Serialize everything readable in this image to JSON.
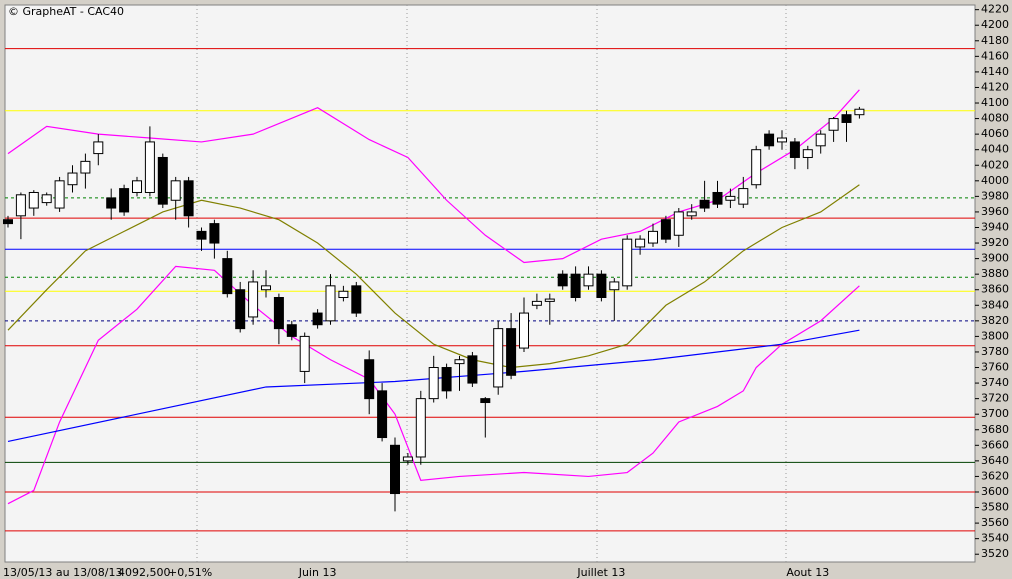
{
  "chart_data": {
    "type": "candlestick",
    "title": "© GrapheAT - CAC40",
    "footer": {
      "period": "13/05/13 au 13/08/13",
      "last": "4092,500",
      "change": "+0,51%"
    },
    "categories": [
      null,
      null,
      null,
      null,
      null,
      null,
      null,
      null,
      null,
      null,
      null,
      null,
      null,
      null,
      null,
      null,
      null,
      null,
      null,
      null,
      null,
      null,
      null,
      null,
      "Juin 13",
      null,
      null,
      null,
      null,
      null,
      null,
      null,
      null,
      null,
      null,
      null,
      null,
      null,
      null,
      null,
      null,
      null,
      null,
      null,
      null,
      null,
      "Juillet 13",
      null,
      null,
      null,
      null,
      null,
      null,
      null,
      null,
      null,
      null,
      null,
      null,
      null,
      null,
      null,
      "Aout 13",
      null,
      null,
      null,
      null
    ],
    "open": [
      3950,
      3955,
      3965,
      3972,
      3965,
      3995,
      4010,
      4035,
      3978,
      3990,
      3985,
      3985,
      4030,
      3975,
      4000,
      3935,
      3945,
      3900,
      3860,
      3825,
      3860,
      3850,
      3815,
      3755,
      3830,
      3820,
      3850,
      3865,
      3770,
      3730,
      3660,
      3640,
      3645,
      3720,
      3760,
      3765,
      3775,
      3720,
      3735,
      3810,
      3785,
      3840,
      3845,
      3880,
      3880,
      3865,
      3880,
      3860,
      3865,
      3915,
      3920,
      3950,
      3930,
      3955,
      3975,
      3985,
      3975,
      3970,
      3995,
      4060,
      4050,
      4050,
      4030,
      4045,
      4065,
      4085,
      4085
    ],
    "high": [
      3955,
      3985,
      3988,
      3985,
      4005,
      4020,
      4035,
      4060,
      3990,
      3995,
      4005,
      4070,
      4035,
      4005,
      4005,
      3940,
      3950,
      3910,
      3870,
      3885,
      3885,
      3855,
      3820,
      3805,
      3835,
      3880,
      3865,
      3870,
      3782,
      3740,
      3670,
      3650,
      3730,
      3775,
      3765,
      3775,
      3780,
      3722,
      3820,
      3830,
      3850,
      3855,
      3855,
      3885,
      3890,
      3890,
      3885,
      3875,
      3930,
      3930,
      3945,
      3955,
      3965,
      3970,
      4000,
      4000,
      3990,
      4005,
      4045,
      4065,
      4065,
      4055,
      4045,
      4065,
      4082,
      4090,
      4095
    ],
    "low": [
      3940,
      3925,
      3955,
      3968,
      3960,
      3985,
      3990,
      4020,
      3950,
      3955,
      3980,
      3980,
      3965,
      3950,
      3940,
      3910,
      3900,
      3850,
      3805,
      3815,
      3850,
      3790,
      3795,
      3740,
      3810,
      3815,
      3845,
      3825,
      3700,
      3665,
      3575,
      3635,
      3635,
      3715,
      3720,
      3730,
      3735,
      3670,
      3725,
      3745,
      3780,
      3835,
      3815,
      3860,
      3845,
      3860,
      3845,
      3820,
      3860,
      3905,
      3915,
      3920,
      3915,
      3950,
      3960,
      3965,
      3965,
      3965,
      3990,
      4040,
      4040,
      4015,
      4015,
      4035,
      4050,
      4050,
      4080
    ],
    "close": [
      3945,
      3982,
      3985,
      3982,
      4000,
      4010,
      4025,
      4050,
      3965,
      3960,
      4000,
      4050,
      3970,
      4000,
      3955,
      3925,
      3920,
      3855,
      3810,
      3870,
      3865,
      3810,
      3800,
      3800,
      3815,
      3865,
      3858,
      3830,
      3720,
      3670,
      3598,
      3645,
      3720,
      3760,
      3730,
      3770,
      3740,
      3715,
      3810,
      3750,
      3830,
      3845,
      3848,
      3865,
      3850,
      3880,
      3850,
      3870,
      3925,
      3925,
      3935,
      3925,
      3960,
      3960,
      3965,
      3970,
      3980,
      3990,
      4040,
      4045,
      4055,
      4030,
      4040,
      4060,
      4080,
      4075,
      4092
    ],
    "overlays": [
      {
        "color": "#ff00ff",
        "x": [
          0,
          3,
          7,
          11,
          15,
          19,
          24,
          28,
          31,
          34,
          37,
          40,
          43,
          46,
          49,
          52,
          55,
          58,
          61,
          64,
          66
        ],
        "values": [
          4035,
          4070,
          4060,
          4055,
          4050,
          4060,
          4094,
          4053,
          4030,
          3975,
          3930,
          3895,
          3900,
          3925,
          3935,
          3960,
          3975,
          4010,
          4040,
          4080,
          4117
        ]
      },
      {
        "color": "#ff00ff",
        "x": [
          0,
          2,
          4,
          7,
          10,
          13,
          16,
          19,
          22,
          25,
          28,
          30,
          32,
          35,
          40,
          45,
          48,
          50,
          52,
          55,
          57,
          58,
          60,
          63,
          66
        ],
        "values": [
          3585,
          3602,
          3690,
          3795,
          3835,
          3890,
          3885,
          3840,
          3800,
          3770,
          3745,
          3700,
          3615,
          3620,
          3625,
          3620,
          3625,
          3650,
          3690,
          3710,
          3730,
          3760,
          3790,
          3820,
          3865
        ]
      },
      {
        "color": "#808000",
        "x": [
          0,
          3,
          6,
          9,
          12,
          15,
          18,
          21,
          24,
          27,
          30,
          33,
          36,
          39,
          42,
          45,
          48,
          51,
          54,
          57,
          60,
          63,
          66
        ],
        "values": [
          3808,
          3860,
          3910,
          3935,
          3960,
          3975,
          3965,
          3950,
          3920,
          3880,
          3830,
          3790,
          3770,
          3760,
          3765,
          3775,
          3790,
          3840,
          3870,
          3910,
          3940,
          3960,
          3995
        ]
      },
      {
        "color": "#0000ff",
        "x": [
          0,
          10,
          20,
          30,
          40,
          50,
          60,
          66
        ],
        "values": [
          3665,
          3700,
          3735,
          3742,
          3755,
          3770,
          3790,
          3808
        ]
      }
    ],
    "hlines": [
      {
        "value": 4170,
        "color": "#e00000",
        "dash": false
      },
      {
        "value": 4090,
        "color": "#ffff00",
        "dash": false
      },
      {
        "value": 3978,
        "color": "#008000",
        "dash": true
      },
      {
        "value": 3952,
        "color": "#e00000",
        "dash": false
      },
      {
        "value": 3912,
        "color": "#0000ff",
        "dash": false
      },
      {
        "value": 3876,
        "color": "#008000",
        "dash": true
      },
      {
        "value": 3858,
        "color": "#ffff00",
        "dash": false
      },
      {
        "value": 3820,
        "color": "#000080",
        "dash": true
      },
      {
        "value": 3788,
        "color": "#e00000",
        "dash": false
      },
      {
        "value": 3696,
        "color": "#e00000",
        "dash": false
      },
      {
        "value": 3638,
        "color": "#004000",
        "dash": false
      },
      {
        "value": 3600,
        "color": "#e00000",
        "dash": false
      },
      {
        "value": 3550,
        "color": "#e00000",
        "dash": false
      }
    ],
    "ylim": [
      3510,
      4226
    ],
    "yticks": [
      3520,
      3540,
      3560,
      3580,
      3600,
      3620,
      3640,
      3660,
      3680,
      3700,
      3720,
      3740,
      3760,
      3780,
      3800,
      3820,
      3840,
      3860,
      3880,
      3900,
      3920,
      3940,
      3960,
      3980,
      4000,
      4020,
      4040,
      4060,
      4080,
      4100,
      4120,
      4140,
      4160,
      4180,
      4200,
      4220
    ],
    "up_color": "#ffffff",
    "down_color": "#000000"
  }
}
